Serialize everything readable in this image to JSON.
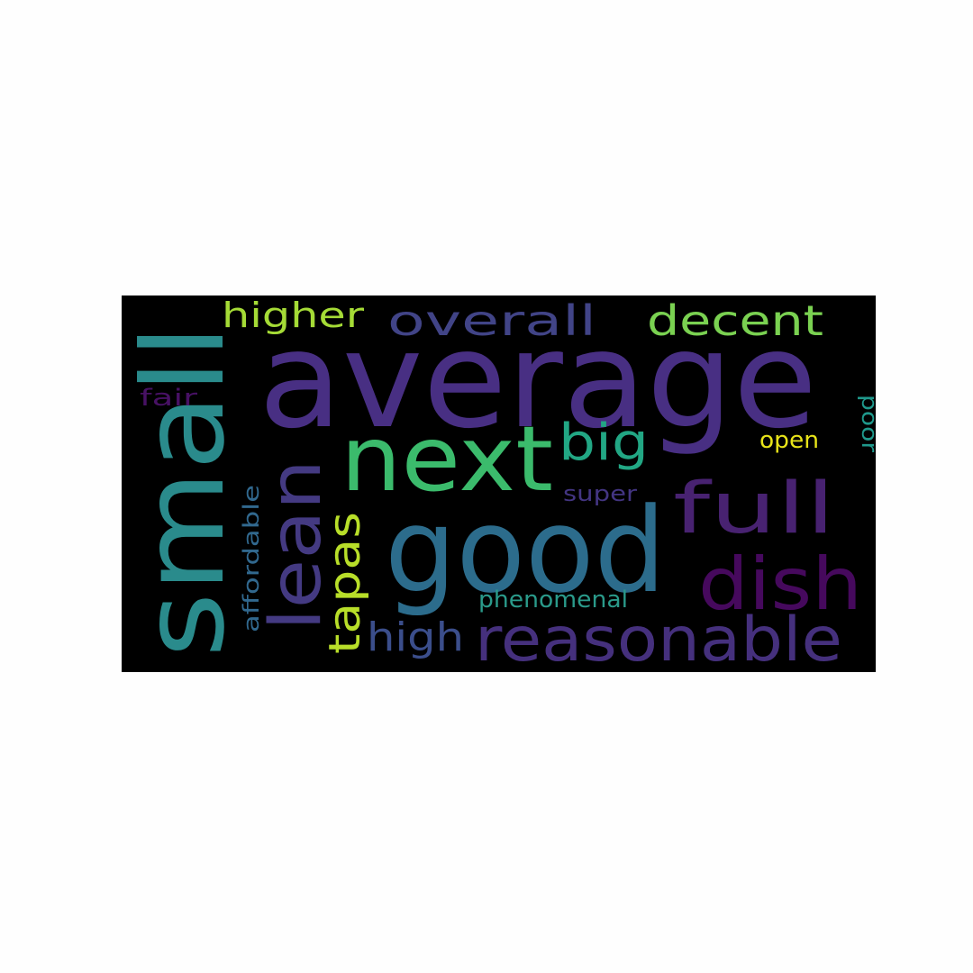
{
  "word_cloud": {
    "background": "#000000",
    "words": [
      {
        "text": "average",
        "color": "#482f83"
      },
      {
        "text": "small",
        "color": "#2a8b8c"
      },
      {
        "text": "good",
        "color": "#2c6c8c"
      },
      {
        "text": "next",
        "color": "#3bbb6c"
      },
      {
        "text": "lean",
        "color": "#443a82"
      },
      {
        "text": "full",
        "color": "#482271"
      },
      {
        "text": "dish",
        "color": "#46095d"
      },
      {
        "text": "reasonable",
        "color": "#45307d"
      },
      {
        "text": "overall",
        "color": "#414487"
      },
      {
        "text": "decent",
        "color": "#7ad151"
      },
      {
        "text": "higher",
        "color": "#a5db36"
      },
      {
        "text": "big",
        "color": "#22a784"
      },
      {
        "text": "tapas",
        "color": "#b8de29"
      },
      {
        "text": "high",
        "color": "#3b4e8b"
      },
      {
        "text": "phenomenal",
        "color": "#2a9a8a"
      },
      {
        "text": "affordable",
        "color": "#31688e"
      },
      {
        "text": "super",
        "color": "#433582"
      },
      {
        "text": "fair",
        "color": "#471164"
      },
      {
        "text": "open",
        "color": "#e8e419"
      },
      {
        "text": "poor",
        "color": "#1f988b"
      }
    ]
  }
}
